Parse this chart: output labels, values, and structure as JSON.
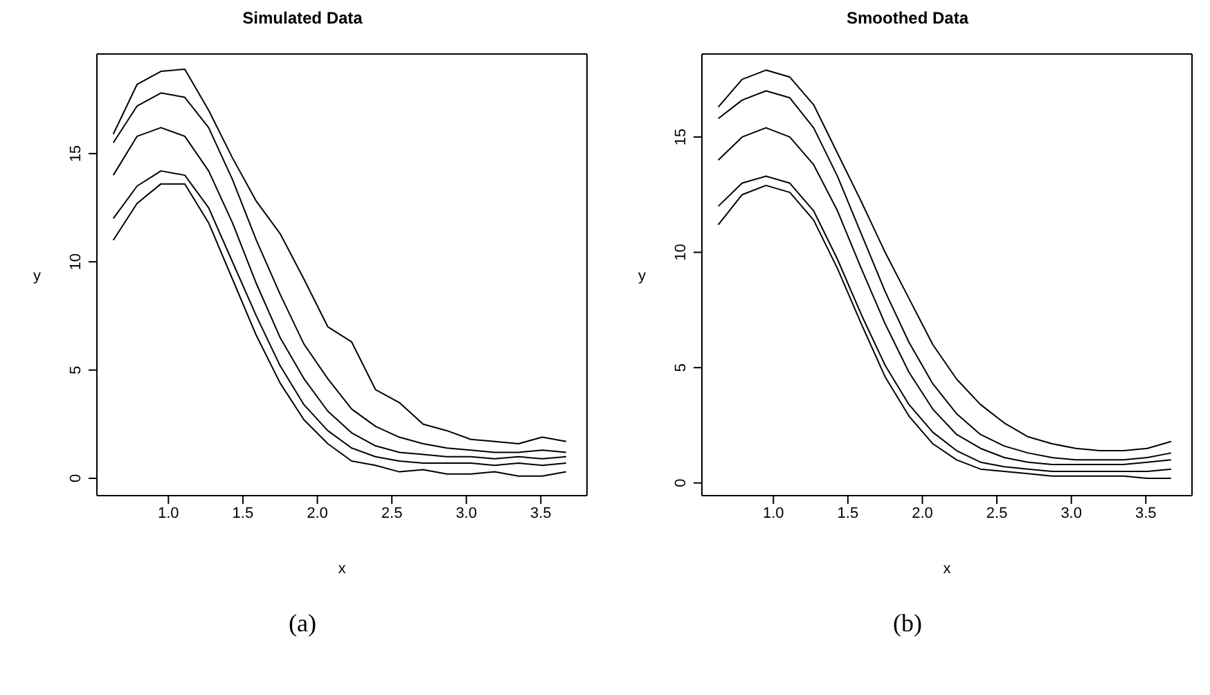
{
  "chart_data": [
    {
      "type": "line",
      "title": "Simulated Data",
      "xlabel": "x",
      "ylabel": "y",
      "annotations": [
        "(a)"
      ],
      "marker": "none",
      "line_style": "solid",
      "grid": false,
      "legend": false,
      "x": [
        0.63,
        0.79,
        0.95,
        1.11,
        1.27,
        1.43,
        1.59,
        1.75,
        1.91,
        2.07,
        2.23,
        2.39,
        2.55,
        2.71,
        2.87,
        3.03,
        3.19,
        3.35,
        3.51,
        3.67
      ],
      "xlim": [
        0.52,
        3.81
      ],
      "xticks": [
        {
          "value": 1,
          "label": "1.0"
        },
        {
          "value": 1.5,
          "label": "1.5"
        },
        {
          "value": 2,
          "label": "2.0"
        },
        {
          "value": 2.5,
          "label": "2.5"
        },
        {
          "value": 3,
          "label": "3.0"
        },
        {
          "value": 3.5,
          "label": "3.5"
        }
      ],
      "ylim": [
        -0.8,
        19.6
      ],
      "yticks": [
        0,
        5,
        10,
        15
      ],
      "series": [
        {
          "color": "#000000",
          "values": [
            15.9,
            18.2,
            18.8,
            18.9,
            17.0,
            14.8,
            12.8,
            11.3,
            9.2,
            7.0,
            6.3,
            4.1,
            3.5,
            2.5,
            2.2,
            1.8,
            1.7,
            1.6,
            1.9,
            1.7
          ]
        },
        {
          "color": "#000000",
          "values": [
            15.5,
            17.2,
            17.8,
            17.6,
            16.2,
            13.8,
            11.0,
            8.5,
            6.2,
            4.6,
            3.2,
            2.4,
            1.9,
            1.6,
            1.4,
            1.3,
            1.2,
            1.2,
            1.3,
            1.2
          ]
        },
        {
          "color": "#000000",
          "values": [
            14.0,
            15.8,
            16.2,
            15.8,
            14.2,
            11.8,
            9.0,
            6.5,
            4.6,
            3.1,
            2.1,
            1.5,
            1.2,
            1.1,
            1.0,
            1.0,
            0.9,
            1.0,
            0.9,
            1.0
          ]
        },
        {
          "color": "#000000",
          "values": [
            12.0,
            13.5,
            14.2,
            14.0,
            12.5,
            10.0,
            7.5,
            5.2,
            3.4,
            2.2,
            1.4,
            1.0,
            0.8,
            0.7,
            0.7,
            0.7,
            0.6,
            0.7,
            0.6,
            0.7
          ]
        },
        {
          "color": "#000000",
          "values": [
            11.0,
            12.7,
            13.6,
            13.6,
            11.8,
            9.2,
            6.6,
            4.4,
            2.7,
            1.6,
            0.8,
            0.6,
            0.3,
            0.4,
            0.2,
            0.2,
            0.3,
            0.1,
            0.1,
            0.3
          ]
        }
      ]
    },
    {
      "type": "line",
      "title": "Smoothed Data",
      "xlabel": "x",
      "ylabel": "y",
      "annotations": [
        "(b)"
      ],
      "marker": "none",
      "line_style": "solid",
      "grid": false,
      "legend": false,
      "x": [
        0.63,
        0.79,
        0.95,
        1.11,
        1.27,
        1.43,
        1.59,
        1.75,
        1.91,
        2.07,
        2.23,
        2.39,
        2.55,
        2.71,
        2.87,
        3.03,
        3.19,
        3.35,
        3.51,
        3.67
      ],
      "xlim": [
        0.52,
        3.81
      ],
      "xticks": [
        {
          "value": 1,
          "label": "1.0"
        },
        {
          "value": 1.5,
          "label": "1.5"
        },
        {
          "value": 2,
          "label": "2.0"
        },
        {
          "value": 2.5,
          "label": "2.5"
        },
        {
          "value": 3,
          "label": "3.0"
        },
        {
          "value": 3.5,
          "label": "3.5"
        }
      ],
      "ylim": [
        -0.55,
        18.6
      ],
      "yticks": [
        0,
        5,
        10,
        15
      ],
      "series": [
        {
          "color": "#000000",
          "values": [
            16.3,
            17.5,
            17.9,
            17.6,
            16.4,
            14.3,
            12.2,
            10.0,
            8.0,
            6.0,
            4.5,
            3.4,
            2.6,
            2.0,
            1.7,
            1.5,
            1.4,
            1.4,
            1.5,
            1.8
          ]
        },
        {
          "color": "#000000",
          "values": [
            15.8,
            16.6,
            17.0,
            16.7,
            15.4,
            13.3,
            10.8,
            8.3,
            6.1,
            4.3,
            3.0,
            2.1,
            1.6,
            1.3,
            1.1,
            1.0,
            1.0,
            1.0,
            1.1,
            1.3
          ]
        },
        {
          "color": "#000000",
          "values": [
            14.0,
            15.0,
            15.4,
            15.0,
            13.8,
            11.8,
            9.3,
            6.9,
            4.8,
            3.2,
            2.1,
            1.5,
            1.1,
            0.9,
            0.8,
            0.8,
            0.8,
            0.8,
            0.9,
            1.0
          ]
        },
        {
          "color": "#000000",
          "values": [
            12.0,
            13.0,
            13.3,
            13.0,
            11.8,
            9.7,
            7.3,
            5.1,
            3.4,
            2.2,
            1.4,
            0.9,
            0.7,
            0.6,
            0.5,
            0.5,
            0.5,
            0.5,
            0.5,
            0.6
          ]
        },
        {
          "color": "#000000",
          "values": [
            11.2,
            12.5,
            12.9,
            12.6,
            11.4,
            9.3,
            6.9,
            4.6,
            2.9,
            1.7,
            1.0,
            0.6,
            0.5,
            0.4,
            0.3,
            0.3,
            0.3,
            0.3,
            0.2,
            0.2
          ]
        }
      ]
    }
  ]
}
